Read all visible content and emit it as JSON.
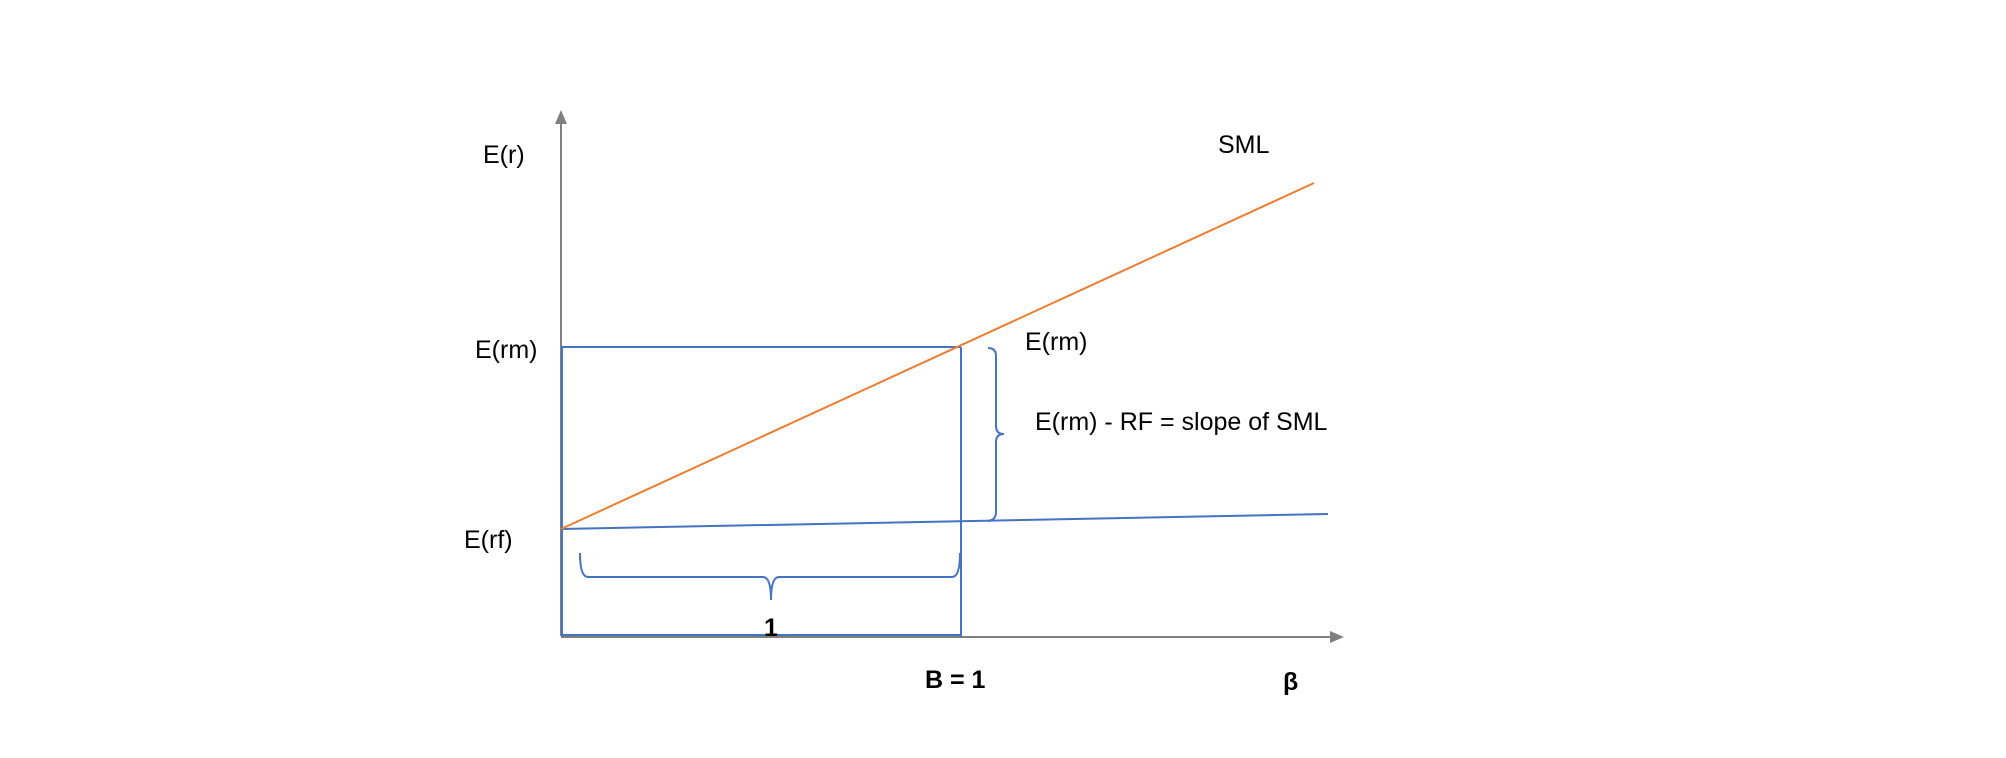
{
  "labels": {
    "y_axis": "E(r)",
    "x_axis": "β",
    "sml": "SML",
    "erm_left": "E(rm)",
    "erm_right": "E(rm)",
    "erf": "E(rf)",
    "slope_note": "E(rm)  - RF = slope of SML",
    "beta_one": "B = 1",
    "unit_one": "1"
  },
  "colors": {
    "axis": "#808080",
    "sml": "#ED7D31",
    "guides": "#4472C4",
    "text": "#000000"
  }
}
